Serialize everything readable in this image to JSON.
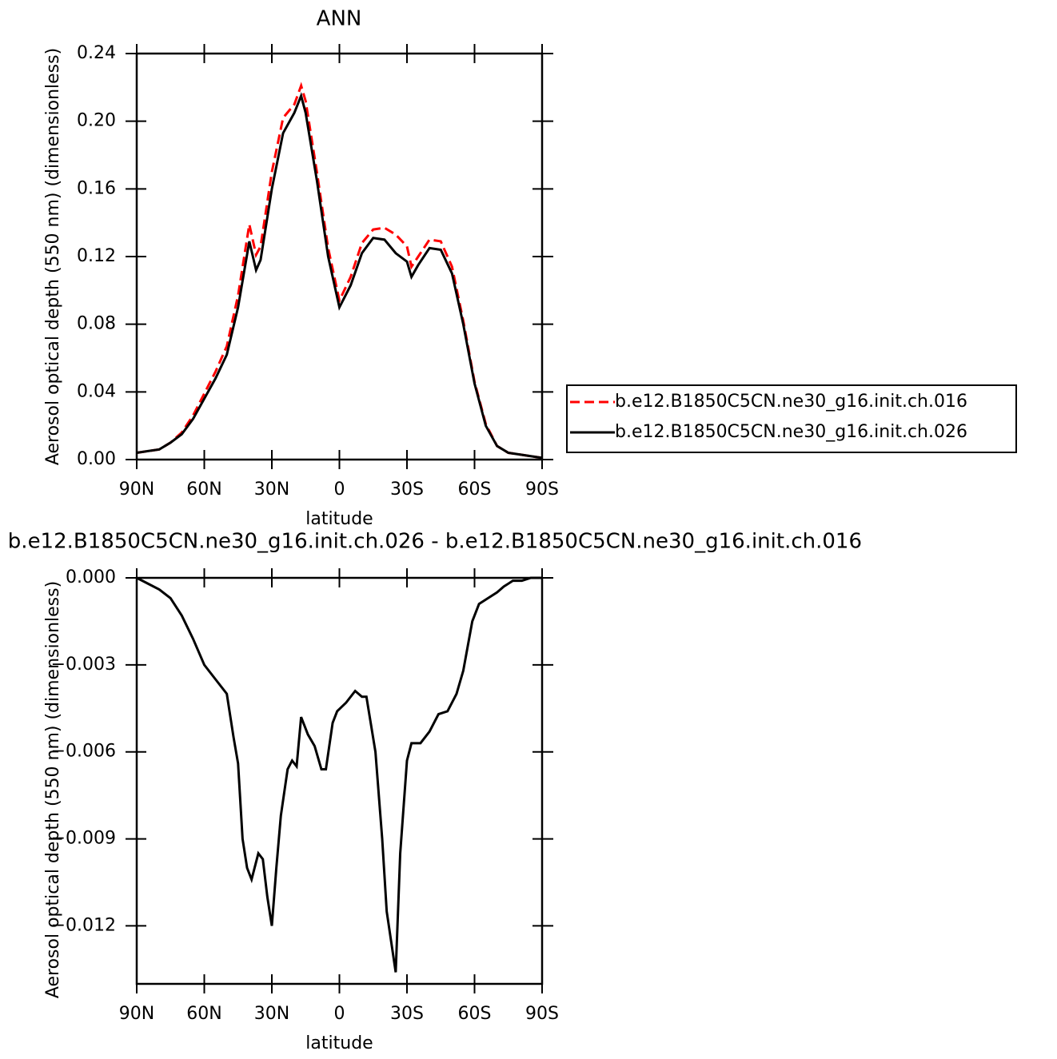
{
  "chart_data": [
    {
      "type": "line",
      "title": "ANN",
      "x_label": "latitude",
      "y_label": "Aerosol optical depth (550 nm) (dimensionless)",
      "xlim": [
        90,
        -90
      ],
      "xticks": [
        {
          "value": 90,
          "label": "90N"
        },
        {
          "value": 60,
          "label": "60N"
        },
        {
          "value": 30,
          "label": "30N"
        },
        0,
        {
          "value": -30,
          "label": "30S"
        },
        {
          "value": -60,
          "label": "60S"
        },
        {
          "value": -90,
          "label": "90S"
        }
      ],
      "ylim": [
        0,
        0.24
      ],
      "yticks": [
        {
          "value": 0,
          "label": "0.00"
        },
        {
          "value": 0.04,
          "label": "0.04"
        },
        {
          "value": 0.08,
          "label": "0.08"
        },
        {
          "value": 0.12,
          "label": "0.12"
        },
        {
          "value": 0.16,
          "label": "0.16"
        },
        {
          "value": 0.2,
          "label": "0.20"
        },
        {
          "value": 0.24,
          "label": "0.24"
        }
      ],
      "legend": "right",
      "x": [
        90,
        85,
        80,
        75,
        70,
        65,
        60,
        55,
        50,
        45,
        40,
        37,
        35,
        30,
        25,
        20,
        17,
        15,
        10,
        5,
        0,
        -5,
        -10,
        -15,
        -20,
        -25,
        -30,
        -32,
        -35,
        -40,
        -45,
        -50,
        -55,
        -60,
        -65,
        -70,
        -75,
        -80,
        -85,
        -90
      ],
      "series": [
        {
          "name": "b.e12.B1850C5CN.ne30_g16.init.ch.016",
          "color": "#ff0000",
          "line_style": "dashed",
          "values": [
            0.004,
            0.005,
            0.006,
            0.01,
            0.016,
            0.026,
            0.039,
            0.052,
            0.067,
            0.097,
            0.139,
            0.121,
            0.126,
            0.17,
            0.202,
            0.21,
            0.221,
            0.212,
            0.17,
            0.125,
            0.094,
            0.108,
            0.128,
            0.136,
            0.137,
            0.133,
            0.126,
            0.114,
            0.12,
            0.13,
            0.129,
            0.114,
            0.082,
            0.046,
            0.021,
            0.008,
            0.004,
            0.003,
            0.002,
            0.001
          ]
        },
        {
          "name": "b.e12.B1850C5CN.ne30_g16.init.ch.026",
          "color": "#000000",
          "line_style": "solid",
          "values": [
            0.004,
            0.005,
            0.006,
            0.01,
            0.015,
            0.024,
            0.036,
            0.048,
            0.062,
            0.09,
            0.129,
            0.112,
            0.118,
            0.16,
            0.193,
            0.205,
            0.215,
            0.205,
            0.165,
            0.12,
            0.09,
            0.103,
            0.122,
            0.131,
            0.13,
            0.122,
            0.117,
            0.108,
            0.115,
            0.125,
            0.124,
            0.11,
            0.08,
            0.045,
            0.02,
            0.008,
            0.004,
            0.003,
            0.002,
            0.001
          ]
        }
      ]
    },
    {
      "type": "line",
      "title": "b.e12.B1850C5CN.ne30_g16.init.ch.026 - b.e12.B1850C5CN.ne30_g16.init.ch.016",
      "x_label": "latitude",
      "y_label": "Aerosol optical depth (550 nm) (dimensionless)",
      "xlim": [
        90,
        -90
      ],
      "xticks": [
        {
          "value": 90,
          "label": "90N"
        },
        {
          "value": 60,
          "label": "60N"
        },
        {
          "value": 30,
          "label": "30N"
        },
        0,
        {
          "value": -30,
          "label": "30S"
        },
        {
          "value": -60,
          "label": "60S"
        },
        {
          "value": -90,
          "label": "90S"
        }
      ],
      "ylim": [
        -0.014,
        0
      ],
      "yticks": [
        {
          "value": 0,
          "label": "0.000"
        },
        {
          "value": -0.003,
          "label": "−0.003"
        },
        {
          "value": -0.006,
          "label": "−0.006"
        },
        {
          "value": -0.009,
          "label": "−0.009"
        },
        {
          "value": -0.012,
          "label": "−0.012"
        }
      ],
      "x": [
        90,
        85,
        80,
        75,
        70,
        65,
        60,
        55,
        50,
        47,
        45,
        43,
        41,
        39,
        36,
        34,
        32,
        30,
        28,
        26,
        23,
        21,
        19,
        17,
        14,
        11,
        8,
        6,
        3,
        1,
        -3,
        -7,
        -10,
        -12,
        -16,
        -19,
        -21,
        -25,
        -27,
        -30,
        -32,
        -36,
        -40,
        -44,
        -48,
        -52,
        -55,
        -59,
        -62,
        -66,
        -70,
        -73,
        -77,
        -81,
        -85,
        -90
      ],
      "series": [
        {
          "color": "#000000",
          "line_style": "solid",
          "values": [
            0.0,
            -0.0002,
            -0.0004,
            -0.0007,
            -0.0013,
            -0.0021,
            -0.003,
            -0.0035,
            -0.004,
            -0.0055,
            -0.0064,
            -0.009,
            -0.01,
            -0.0104,
            -0.0095,
            -0.0097,
            -0.011,
            -0.012,
            -0.01,
            -0.0082,
            -0.0066,
            -0.0063,
            -0.0065,
            -0.0048,
            -0.0054,
            -0.0058,
            -0.0066,
            -0.0066,
            -0.005,
            -0.0046,
            -0.0043,
            -0.0039,
            -0.0041,
            -0.0041,
            -0.006,
            -0.009,
            -0.0115,
            -0.0136,
            -0.0095,
            -0.0063,
            -0.0057,
            -0.0057,
            -0.0053,
            -0.0047,
            -0.0046,
            -0.004,
            -0.0032,
            -0.0015,
            -0.0009,
            -0.0007,
            -0.0005,
            -0.0003,
            -0.0001,
            -0.0001,
            0.0,
            0.0
          ]
        }
      ]
    }
  ]
}
